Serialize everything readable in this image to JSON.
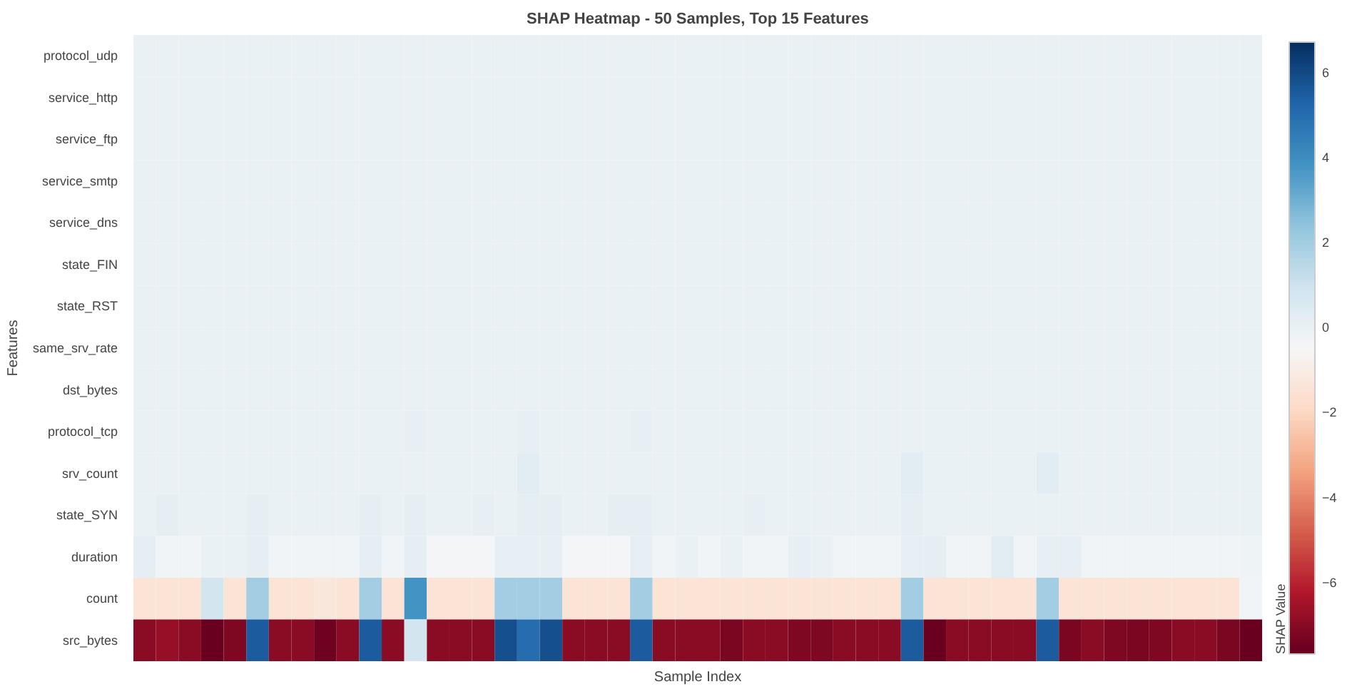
{
  "chart_data": {
    "type": "heatmap",
    "title": "SHAP Heatmap - 50 Samples, Top 15 Features",
    "xlabel": "Sample Index",
    "ylabel": "Features",
    "clabel": "SHAP Value",
    "categories": [
      null,
      null,
      null,
      null,
      null,
      null,
      null,
      null,
      null,
      null,
      null,
      null,
      null,
      null,
      null,
      null,
      null,
      null,
      null,
      null,
      null,
      null,
      null,
      null,
      null,
      null,
      null,
      null,
      null,
      null,
      null,
      null,
      null,
      null,
      null,
      null,
      null,
      null,
      null,
      null,
      null,
      null,
      null,
      null,
      null,
      null,
      null,
      null,
      null,
      null
    ],
    "y_categories": [
      "protocol_udp",
      "service_http",
      "service_ftp",
      "service_smtp",
      "service_dns",
      "state_FIN",
      "state_RST",
      "same_srv_rate",
      "dst_bytes",
      "protocol_tcp",
      "srv_count",
      "state_SYN",
      "duration",
      "count",
      "src_bytes"
    ],
    "cells": [
      [
        0,
        0,
        0,
        0,
        0,
        0,
        0,
        0,
        0,
        0,
        0,
        0,
        0,
        0,
        0,
        0,
        0,
        0,
        0,
        0,
        0,
        0,
        0,
        0,
        0,
        0,
        0,
        0,
        0,
        0,
        0,
        0,
        0,
        0,
        0,
        0,
        0,
        0,
        0,
        0,
        0,
        0,
        0,
        0,
        0,
        0,
        0,
        0,
        0,
        0
      ],
      [
        0,
        0,
        0,
        0,
        0,
        0,
        0,
        0,
        0,
        0,
        0,
        0,
        0,
        0,
        0,
        0,
        0,
        0,
        0,
        0,
        0,
        0,
        0,
        0,
        0,
        0,
        0,
        0,
        0,
        0,
        0,
        0,
        0,
        0,
        0,
        0,
        0,
        0,
        0,
        0,
        0,
        0,
        0,
        0,
        0,
        0,
        0,
        0,
        0,
        0
      ],
      [
        0,
        0,
        0,
        0,
        0,
        0,
        0,
        0,
        0,
        0,
        0,
        0,
        0,
        0,
        0,
        0,
        0,
        0,
        0,
        0,
        0,
        0,
        0,
        0,
        0,
        0,
        0,
        0,
        0,
        0,
        0,
        0,
        0,
        0,
        0,
        0,
        0,
        0,
        0,
        0,
        0,
        0,
        0,
        0,
        0,
        0,
        0,
        0,
        0,
        0
      ],
      [
        0,
        0,
        0,
        0,
        0,
        0,
        0,
        0,
        0,
        0,
        0,
        0,
        0,
        0,
        0,
        0,
        0,
        0,
        0,
        0,
        0,
        0,
        0,
        0,
        0,
        0,
        0,
        0,
        0,
        0,
        0,
        0,
        0,
        0,
        0,
        0,
        0,
        0,
        0,
        0,
        0,
        0,
        0,
        0,
        0,
        0,
        0,
        0,
        0,
        0
      ],
      [
        0,
        0,
        0,
        0,
        0,
        0,
        0,
        0,
        0,
        0,
        0,
        0,
        0,
        0,
        0,
        0,
        0,
        0,
        0,
        0,
        0,
        0,
        0,
        0,
        0,
        0,
        0,
        0,
        0,
        0,
        0,
        0,
        0,
        0,
        0,
        0,
        0,
        0,
        0,
        0,
        0,
        0,
        0,
        0,
        0,
        0,
        0,
        0,
        0,
        0
      ],
      [
        0,
        0,
        0,
        0,
        0,
        0,
        0,
        0,
        0,
        0,
        0,
        0,
        0,
        0,
        0,
        0,
        0,
        0,
        0,
        0,
        0,
        0,
        0,
        0,
        0,
        0,
        0,
        0,
        0,
        0,
        0,
        0,
        0,
        0,
        0,
        0,
        0,
        0,
        0,
        0,
        0,
        0,
        0,
        0,
        0,
        0,
        0,
        0,
        0,
        0
      ],
      [
        0,
        0,
        0,
        0,
        0,
        0,
        0,
        0,
        0,
        0,
        0,
        0,
        0,
        0,
        0,
        0,
        0,
        0,
        0,
        0,
        0,
        0,
        0,
        0,
        0,
        0,
        0,
        0,
        0,
        0,
        0,
        0,
        0,
        0,
        0,
        0,
        0,
        0,
        0,
        0,
        0,
        0,
        0,
        0,
        0,
        0,
        0,
        0,
        0,
        0
      ],
      [
        0,
        0,
        0,
        0,
        0,
        0,
        0,
        0,
        0,
        0,
        0,
        0,
        0,
        0,
        0,
        0,
        0,
        0,
        0,
        0,
        0,
        0,
        0,
        0,
        0,
        0,
        0,
        0,
        0,
        0,
        0,
        0,
        0,
        0,
        0,
        0,
        0,
        0,
        0,
        0,
        0,
        0,
        0,
        0,
        0,
        0,
        0,
        0,
        0,
        0
      ],
      [
        0,
        0,
        0,
        0,
        0,
        0,
        0,
        0,
        0,
        0,
        0,
        0,
        0,
        0,
        0,
        0,
        0,
        0,
        0,
        0,
        0,
        0,
        0,
        0,
        0,
        0,
        0,
        0,
        0,
        0,
        0,
        0,
        0,
        0,
        0,
        0,
        0,
        0,
        0,
        0,
        0,
        0,
        0,
        0,
        0,
        0,
        0,
        0,
        0,
        0
      ],
      [
        0,
        0,
        0,
        0,
        0,
        0,
        0,
        0,
        0,
        0,
        0,
        0,
        0.1,
        0,
        0,
        0,
        0,
        0.1,
        0,
        0,
        0,
        0,
        0.1,
        0,
        0,
        0,
        0,
        0,
        0,
        0,
        0,
        0,
        0,
        0,
        0,
        0,
        0,
        0,
        0,
        0,
        0,
        0,
        0,
        0,
        0,
        0,
        0,
        0,
        0,
        0
      ],
      [
        0,
        0,
        0,
        0,
        0,
        0,
        0,
        0,
        0,
        0,
        0,
        0,
        0,
        0,
        0,
        0,
        0,
        0.3,
        0,
        0,
        0,
        0,
        0,
        0,
        0,
        0,
        0,
        0,
        0,
        0,
        0,
        0,
        0,
        0,
        0.3,
        0,
        0,
        0,
        0,
        0,
        0.3,
        0,
        0,
        0,
        0,
        0,
        0,
        0,
        0,
        0
      ],
      [
        0,
        0.2,
        0,
        0,
        0,
        0.2,
        0,
        0,
        0,
        0,
        0.2,
        0,
        0.2,
        0,
        0,
        0.1,
        0,
        0.2,
        0.2,
        0,
        0,
        0.2,
        0.2,
        0,
        0,
        0,
        0,
        0.1,
        0,
        0,
        0,
        0,
        0,
        0,
        0.2,
        0,
        0,
        0,
        0,
        0,
        0,
        0,
        0,
        0,
        0,
        0,
        0,
        0,
        0,
        0
      ],
      [
        0.2,
        -0.3,
        -0.3,
        0,
        0,
        0.2,
        -0.3,
        -0.3,
        -0.3,
        -0.3,
        0.2,
        -0.3,
        0.2,
        -0.4,
        -0.4,
        -0.4,
        0.1,
        0.1,
        0.1,
        -0.4,
        -0.4,
        -0.4,
        0.1,
        -0.3,
        0,
        -0.3,
        0,
        -0.3,
        -0.3,
        0.1,
        0,
        -0.3,
        -0.3,
        -0.3,
        0.1,
        0.2,
        -0.3,
        -0.3,
        0.3,
        -0.3,
        0.1,
        0.1,
        -0.3,
        -0.3,
        -0.3,
        -0.3,
        -0.3,
        -0.3,
        -0.3,
        -0.2
      ],
      [
        -1.5,
        -1.5,
        -1.5,
        0.8,
        -1.5,
        2,
        -1.5,
        -1.5,
        -1.3,
        -1.5,
        2,
        -1.5,
        3.8,
        -1.5,
        -1.5,
        -1.5,
        2,
        2,
        2,
        -1.5,
        -1.5,
        -1.5,
        2,
        -1.5,
        -1.5,
        -1.5,
        -1.5,
        -1.5,
        -1.5,
        -1.5,
        -1.5,
        -1.5,
        -1.5,
        -1.5,
        2,
        -1.5,
        -1.5,
        -1.5,
        -1.5,
        -1.5,
        2,
        -1.5,
        -1.5,
        -1.5,
        -1.5,
        -1.5,
        -1.5,
        -1.5,
        -1.5,
        -0.3
      ],
      [
        -7,
        -6.8,
        -7,
        -7.6,
        -7.2,
        5.5,
        -7,
        -7,
        -7.5,
        -7,
        5.5,
        -7,
        0.8,
        -7,
        -7,
        -7,
        5.8,
        5,
        5.8,
        -7,
        -7,
        -7,
        5.5,
        -7,
        -7,
        -7,
        -7.3,
        -7,
        -7,
        -7.2,
        -7.2,
        -7,
        -7,
        -7,
        5.5,
        -7.6,
        -7,
        -7,
        -7,
        -7,
        5.5,
        -7.3,
        -7,
        -7.2,
        -7.3,
        -7.2,
        -7,
        -7,
        -7.3,
        -7.6
      ]
    ],
    "clim": [
      -7.7,
      6.7
    ],
    "cticks": [
      -6,
      -4,
      -2,
      0,
      2,
      4,
      6
    ],
    "tick_labels": "y"
  }
}
